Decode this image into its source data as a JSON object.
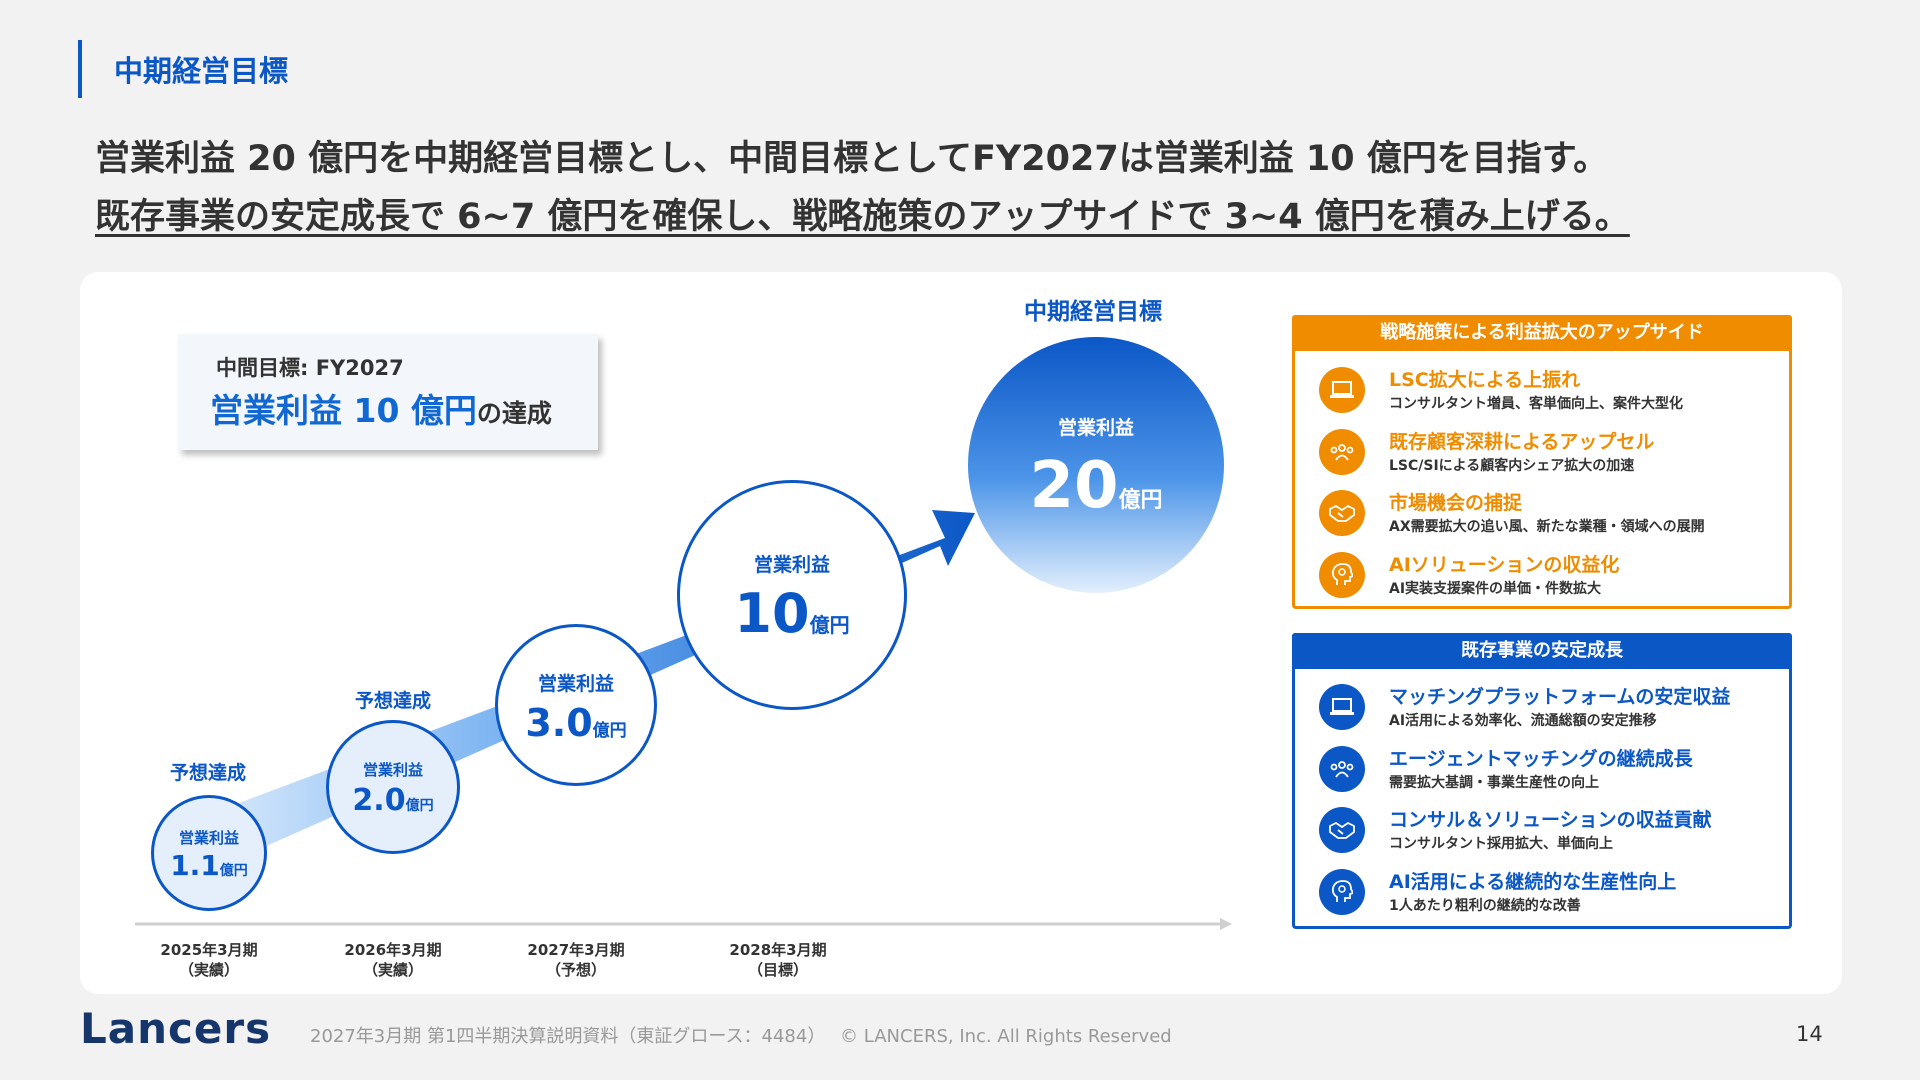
{
  "section_title": "中期経営目標",
  "headline": {
    "line1": "営業利益 20 億円を中期経営目標とし、中間目標としてFY2027は営業利益 10 億円を目指す。",
    "line2": "既存事業の安定成長で 6~7 億円を確保し、戦略施策のアップサイドで 3~4 億円を積み上げる。"
  },
  "intermediate_target": {
    "label": "中間目標: FY2027",
    "value_text": "営業利益 10 億円",
    "suffix": "の達成"
  },
  "mid_term_label": "中期経営目標",
  "steps": [
    {
      "label": "営業利益",
      "value": "1.1",
      "unit": "億円",
      "note": "予想達成",
      "period": "2025年3月期",
      "kind": "（実績）"
    },
    {
      "label": "営業利益",
      "value": "2.0",
      "unit": "億円",
      "note": "予想達成",
      "period": "2026年3月期",
      "kind": "（実績）"
    },
    {
      "label": "営業利益",
      "value": "3.0",
      "unit": "億円",
      "period": "2027年3月期",
      "kind": "（予想）"
    },
    {
      "label": "営業利益",
      "value": "10",
      "unit": "億円",
      "period": "2028年3月期",
      "kind": "（目標）"
    },
    {
      "label": "営業利益",
      "value": "20",
      "unit": "億円"
    }
  ],
  "upside_box": {
    "title": "戦略施策による利益拡大のアップサイド",
    "color": "#f08c00",
    "items": [
      {
        "icon": "laptop-icon",
        "title": "LSC拡大による上振れ",
        "desc": "コンサルタント増員、客単価向上、案件大型化"
      },
      {
        "icon": "people-icon",
        "title": "既存顧客深耕によるアップセル",
        "desc": "LSC/SIによる顧客内シェア拡大の加速"
      },
      {
        "icon": "handshake-icon",
        "title": "市場機会の捕捉",
        "desc": "AX需要拡大の追い風、新たな業種・領域への展開"
      },
      {
        "icon": "ai-head-icon",
        "title": "AIソリューションの収益化",
        "desc": "AI実装支援案件の単価・件数拡大"
      }
    ]
  },
  "stable_box": {
    "title": "既存事業の安定成長",
    "color": "#0b57c6",
    "items": [
      {
        "icon": "laptop-icon",
        "title": "マッチングプラットフォームの安定収益",
        "desc": "AI活用による効率化、流通総額の安定推移"
      },
      {
        "icon": "people-icon",
        "title": "エージェントマッチングの継続成長",
        "desc": "需要拡大基調・事業生産性の向上"
      },
      {
        "icon": "handshake-icon",
        "title": "コンサル＆ソリューションの収益貢献",
        "desc": "コンサルタント採用拡大、単価向上"
      },
      {
        "icon": "ai-head-icon",
        "title": "AI活用による継続的な生産性向上",
        "desc": "1人あたり粗利の継続的な改善"
      }
    ]
  },
  "footer": {
    "logo": "Lancers",
    "text": "2027年3月期 第1四半期決算説明資料（東証グロース：4484）　 © LANCERS, Inc. All Rights Reserved",
    "page": "14"
  }
}
